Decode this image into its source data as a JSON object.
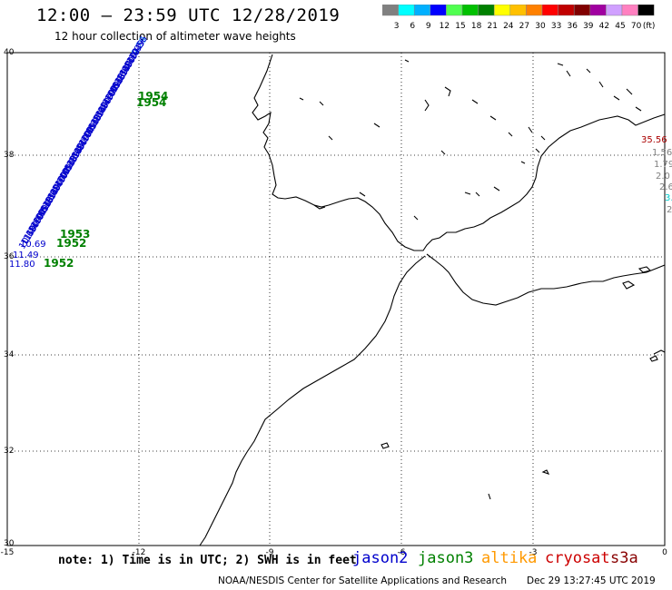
{
  "header": {
    "title": "12:00 – 23:59 UTC 12/28/2019",
    "subtitle": "12 hour collection of altimeter wave heights"
  },
  "legend": {
    "labels": [
      "3",
      "6",
      "9",
      "12",
      "15",
      "18",
      "21",
      "24",
      "27",
      "30",
      "33",
      "36",
      "39",
      "42",
      "45",
      "70"
    ],
    "unit": "(ft)",
    "colors": [
      "#808080",
      "#00ffff",
      "#00b0ff",
      "#0000ff",
      "#50ff50",
      "#00c000",
      "#008000",
      "#ffff00",
      "#ffc000",
      "#ff8000",
      "#ff0000",
      "#c00000",
      "#800000",
      "#a000a0",
      "#d0a0ff",
      "#ff80c0",
      "#000000"
    ]
  },
  "map": {
    "lon_ticks": [
      "-15",
      "-12",
      "-9",
      "-6",
      "-3",
      "0"
    ],
    "lat_ticks": [
      "40",
      "38",
      "36",
      "34",
      "32",
      "30"
    ],
    "jason2_label_colors": "#0000cc",
    "track_labels": [
      {
        "text": "9.29",
        "color": "#2fa8ff"
      },
      {
        "text": "10.33",
        "color": "#0000cc"
      },
      {
        "text": "10.56",
        "color": "#0000cc"
      },
      {
        "text": "10.99",
        "color": "#0000cc"
      },
      {
        "text": "11.04",
        "color": "#0000cc"
      },
      {
        "text": "10.79",
        "color": "#0000cc"
      },
      {
        "text": "11.49",
        "color": "#0000cc"
      },
      {
        "text": "11.80",
        "color": "#0000cc"
      },
      {
        "text": "10.69",
        "color": "#0000cc"
      },
      {
        "text": "11.14",
        "color": "#0000cc"
      },
      {
        "text": "11.89",
        "color": "#0000cc"
      }
    ],
    "time_labels": [
      "1954",
      "1954",
      "1953",
      "1952",
      "1952"
    ],
    "right_labels": [
      {
        "text": "35.56",
        "color": "#aa0000"
      },
      {
        "text": "1.56",
        "color": "#808080"
      },
      {
        "text": "1.79",
        "color": "#808080"
      },
      {
        "text": "2.0",
        "color": "#808080"
      },
      {
        "text": "2.6",
        "color": "#808080"
      },
      {
        "text": "3.",
        "color": "#00cccc"
      },
      {
        "text": "2",
        "color": "#808080"
      }
    ]
  },
  "footer": {
    "note": "note: 1) Time is in UTC; 2) SWH is in feet",
    "satellites": [
      {
        "name": "jason2",
        "color": "#0000cc"
      },
      {
        "name": "jason3",
        "color": "#008000"
      },
      {
        "name": "altika",
        "color": "#ff9900"
      },
      {
        "name": "cryosat",
        "color": "#cc0000"
      },
      {
        "name": "s3a",
        "color": "#880000"
      }
    ],
    "credit": "NOAA/NESDIS Center for Satellite Applications and Research",
    "timestamp": "Dec 29 13:27:45 UTC 2019"
  }
}
